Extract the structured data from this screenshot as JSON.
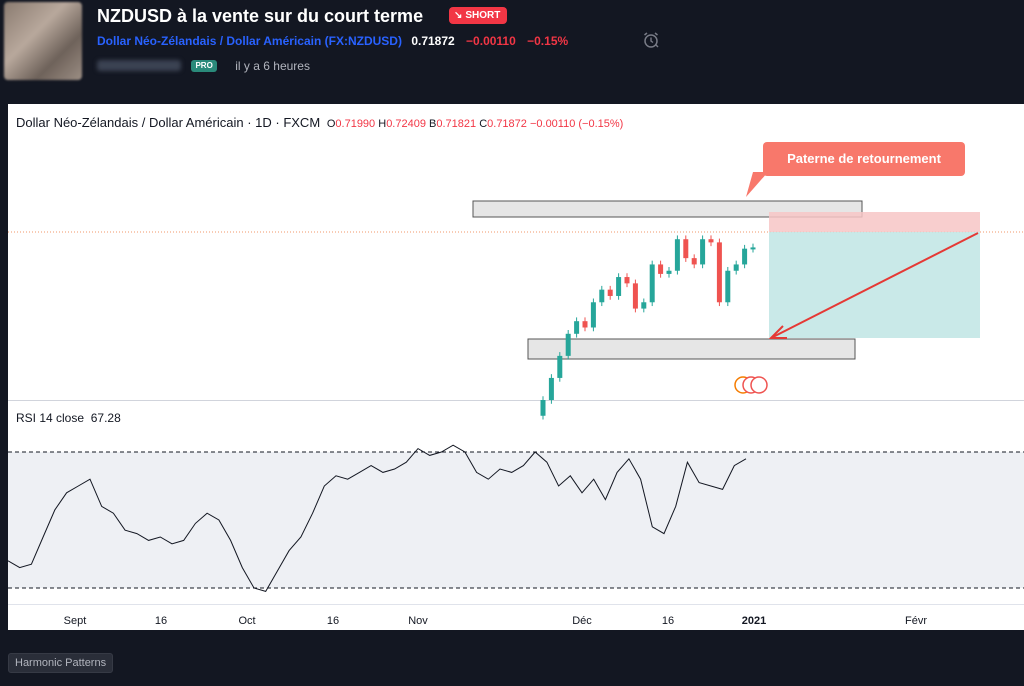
{
  "header": {
    "title": "NZDUSD à la vente sur du court terme",
    "badge": "SHORT",
    "symbol_name": "Dollar Néo-Zélandais / Dollar Américain",
    "symbol_ticker": "(FX:NZDUSD)",
    "price": "0.71872",
    "change": "−0.00110",
    "change_pct": "−0.15%",
    "pro_badge": "PRO",
    "time_ago": "il y a 6 heures",
    "icons": [
      "alarm-clock-icon",
      "down-arrow-icon"
    ]
  },
  "legend": {
    "symbol": "Dollar Néo-Zélandais / Dollar Américain · 1D · FXCM",
    "o_label": "O",
    "o_value": "0.71990",
    "h_label": "H",
    "h_value": "0.72409",
    "b_label": "B",
    "b_value": "0.71821",
    "c_label": "C",
    "c_value": "0.71872",
    "change": "−0.00110 (−0.15%)"
  },
  "callout": "Paterne de retournement",
  "rsi": {
    "label": "RSI 14 close",
    "value": "67.28"
  },
  "colors": {
    "up": "#26a69a",
    "down": "#ef5350",
    "accent": "#2962ff",
    "negative": "#f23645",
    "callout": "#f8786b"
  },
  "footer": {
    "tag": "Harmonic Patterns"
  },
  "chart_data": {
    "type": "candlestick",
    "series": [
      {
        "name": "NZDUSD",
        "values": [
          0.6945,
          0.698,
          0.7015,
          0.705,
          0.707,
          0.706,
          0.71,
          0.712,
          0.711,
          0.714,
          0.713,
          0.709,
          0.71,
          0.716,
          0.7145,
          0.715,
          0.72,
          0.717,
          0.716,
          0.72,
          0.7195,
          0.71,
          0.715,
          0.716,
          0.7185,
          0.7187
        ]
      }
    ],
    "x_ticks": [
      "Sept",
      "16",
      "Oct",
      "16",
      "Nov",
      "Déc",
      "16",
      "2021",
      "Févr"
    ],
    "rsi_series": [
      38,
      36,
      37,
      45,
      53,
      58,
      60,
      62,
      54,
      52,
      47,
      46,
      44,
      45,
      43,
      44,
      49,
      52,
      50,
      44,
      36,
      30,
      29,
      35,
      41,
      45,
      52,
      60,
      63,
      62,
      64,
      66,
      64,
      65,
      67,
      71,
      69,
      70,
      72,
      70,
      64,
      62,
      65,
      64,
      66,
      70,
      67,
      60,
      63,
      58,
      62,
      56,
      64,
      68,
      62,
      48,
      46,
      54,
      67,
      61,
      60,
      59,
      66,
      68
    ]
  }
}
